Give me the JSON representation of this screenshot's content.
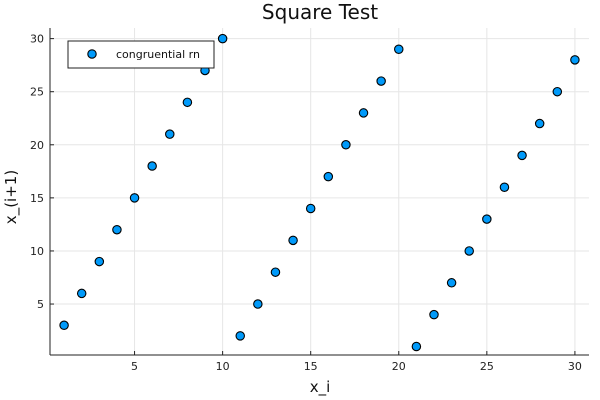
{
  "chart_data": {
    "type": "scatter",
    "title": "Square Test",
    "xlabel": "x_i",
    "ylabel": "x_(i+1)",
    "xlim": [
      0.2,
      30.8
    ],
    "ylim": [
      0.2,
      31
    ],
    "x_ticks": [
      5,
      10,
      15,
      20,
      25,
      30
    ],
    "y_ticks": [
      5,
      10,
      15,
      20,
      25,
      30
    ],
    "grid": true,
    "legend_position": "top-left",
    "series": [
      {
        "name": "congruential rn",
        "color": "#009AFA",
        "marker": "circle",
        "points": [
          {
            "x": 1,
            "y": 3
          },
          {
            "x": 2,
            "y": 6
          },
          {
            "x": 3,
            "y": 9
          },
          {
            "x": 4,
            "y": 12
          },
          {
            "x": 5,
            "y": 15
          },
          {
            "x": 6,
            "y": 18
          },
          {
            "x": 7,
            "y": 21
          },
          {
            "x": 8,
            "y": 24
          },
          {
            "x": 9,
            "y": 27
          },
          {
            "x": 10,
            "y": 30
          },
          {
            "x": 11,
            "y": 2
          },
          {
            "x": 12,
            "y": 5
          },
          {
            "x": 13,
            "y": 8
          },
          {
            "x": 14,
            "y": 11
          },
          {
            "x": 15,
            "y": 14
          },
          {
            "x": 16,
            "y": 17
          },
          {
            "x": 17,
            "y": 20
          },
          {
            "x": 18,
            "y": 23
          },
          {
            "x": 19,
            "y": 26
          },
          {
            "x": 20,
            "y": 29
          },
          {
            "x": 21,
            "y": 1
          },
          {
            "x": 22,
            "y": 4
          },
          {
            "x": 23,
            "y": 7
          },
          {
            "x": 24,
            "y": 10
          },
          {
            "x": 25,
            "y": 13
          },
          {
            "x": 26,
            "y": 16
          },
          {
            "x": 27,
            "y": 19
          },
          {
            "x": 28,
            "y": 22
          },
          {
            "x": 29,
            "y": 25
          },
          {
            "x": 30,
            "y": 28
          }
        ]
      }
    ]
  }
}
